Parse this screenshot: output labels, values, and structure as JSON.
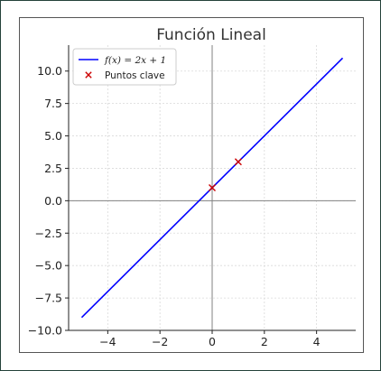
{
  "chart_data": {
    "type": "line",
    "title": "Función Lineal",
    "xlabel": "",
    "ylabel": "",
    "xlim": [
      -5.5,
      5.5
    ],
    "ylim": [
      -10,
      12
    ],
    "xticks": [
      -4,
      -2,
      0,
      2,
      4
    ],
    "xtick_labels": [
      "−4",
      "−2",
      "0",
      "2",
      "4"
    ],
    "yticks": [
      -10,
      -7.5,
      -5,
      -2.5,
      0,
      2.5,
      5,
      7.5,
      10
    ],
    "ytick_labels": [
      "−10.0",
      "−7.5",
      "−5.0",
      "−2.5",
      "0.0",
      "2.5",
      "5.0",
      "7.5",
      "10.0"
    ],
    "grid": true,
    "legend_position": "top-left",
    "series": [
      {
        "name": "f(x) = 2x + 1",
        "kind": "line",
        "color": "#0000ff",
        "x": [
          -5,
          5
        ],
        "y": [
          -9,
          11
        ]
      },
      {
        "name": "Puntos clave",
        "kind": "scatter",
        "marker": "x",
        "color": "#cc0000",
        "x": [
          0,
          1
        ],
        "y": [
          1,
          3
        ]
      }
    ],
    "axis_line_color": "#808080"
  }
}
